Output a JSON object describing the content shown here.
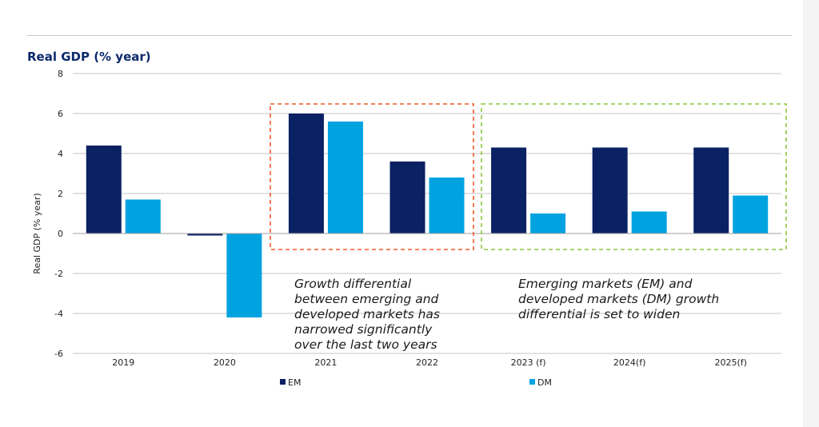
{
  "title": "Real GDP (% year)",
  "chart_data": {
    "type": "bar",
    "categories": [
      "2019",
      "2020",
      "2021",
      "2022",
      "2023 (f)",
      "2024(f)",
      "2025(f)"
    ],
    "series": [
      {
        "name": "EM",
        "color": "#0a2163",
        "values": [
          4.4,
          -0.1,
          6.0,
          3.6,
          4.3,
          4.3,
          4.3
        ]
      },
      {
        "name": "DM",
        "color": "#00a3e0",
        "values": [
          1.7,
          -4.2,
          5.6,
          2.8,
          1.0,
          1.1,
          1.9
        ]
      }
    ],
    "ylabel": "Real GDP (% year)",
    "ylim": [
      -6,
      8
    ],
    "yticks": [
      "-6",
      "-4",
      "-2",
      "0",
      "2",
      "4",
      "6",
      "8"
    ],
    "grid": true,
    "legend_position": "bottom",
    "annotations": [
      {
        "lines": [
          "Growth differential",
          "between emerging and",
          "developed markets has",
          "narrowed significantly",
          "over the last two years"
        ],
        "box_color": "#f05a28",
        "box_style": "dashed",
        "spans": [
          "2021",
          "2022"
        ]
      },
      {
        "lines": [
          "Emerging markets (EM) and",
          "developed markets (DM) growth",
          "differential is set to widen"
        ],
        "box_color": "#8cc63f",
        "box_style": "dashed",
        "spans": [
          "2023 (f)",
          "2024(f)",
          "2025(f)"
        ]
      }
    ]
  }
}
